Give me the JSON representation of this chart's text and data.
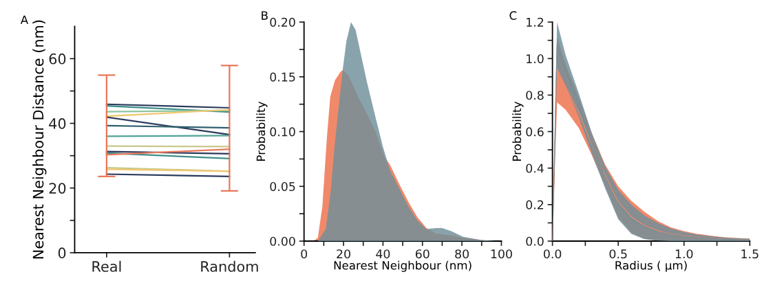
{
  "chart_data": [
    {
      "type": "line",
      "title": "A",
      "ylabel": "Nearest Neighbour Distance (nm)",
      "categories": [
        "Real",
        "Random"
      ],
      "ylim": [
        0,
        70
      ],
      "yticks": [
        0,
        {
          "value": 10,
          "label": null
        },
        20,
        {
          "value": 30,
          "label": null
        },
        40,
        {
          "value": 50,
          "label": null
        },
        60
      ],
      "grid": false,
      "legend": false,
      "marker": "none",
      "line_style": "solid",
      "series": [
        {
          "color": "#2b3a5c",
          "values": [
            45.9,
            44.8
          ]
        },
        {
          "color": "#3f8f8a",
          "values": [
            45.4,
            43.5
          ]
        },
        {
          "color": "#8cc5a0",
          "values": [
            43.6,
            44.0
          ]
        },
        {
          "color": "#f0c870",
          "values": [
            42.2,
            44.2
          ]
        },
        {
          "color": "#2b3a5c",
          "values": [
            41.9,
            36.5
          ]
        },
        {
          "color": "#2f5f6e",
          "values": [
            39.3,
            38.6
          ]
        },
        {
          "color": "#4fa395",
          "values": [
            36.0,
            36.2
          ]
        },
        {
          "color": "#c8c88a",
          "values": [
            33.0,
            32.8
          ]
        },
        {
          "color": "#2b3a5c",
          "values": [
            31.3,
            30.6
          ]
        },
        {
          "color": "#3f8f8a",
          "values": [
            30.8,
            29.1
          ]
        },
        {
          "color": "#c8c88a",
          "values": [
            26.3,
            25.2
          ]
        },
        {
          "color": "#f0c870",
          "values": [
            25.8,
            25.2
          ]
        },
        {
          "color": "#2b3a5c",
          "values": [
            24.3,
            23.6
          ]
        },
        {
          "color": "#e8785a",
          "values": [
            30.3,
            32.0
          ],
          "errors": [
            [
              23.6,
              54.9
            ],
            [
              19.1,
              57.9
            ]
          ]
        }
      ]
    },
    {
      "type": "area",
      "title": "B",
      "xlabel": "Nearest Neighbour (nm)",
      "ylabel": "Probability",
      "xlim": [
        0,
        100
      ],
      "xticks": [
        0,
        {
          "value": 10,
          "label": null
        },
        20,
        {
          "value": 30,
          "label": null
        },
        40,
        {
          "value": 50,
          "label": null
        },
        60,
        {
          "value": 70,
          "label": null
        },
        80,
        {
          "value": 90,
          "label": null
        },
        100
      ],
      "ylim": [
        0,
        0.2
      ],
      "yticks": [
        {
          "value": 0,
          "label": "0.00"
        },
        {
          "value": 0.025,
          "label": null
        },
        {
          "value": 0.05,
          "label": "0.05"
        },
        {
          "value": 0.075,
          "label": null
        },
        {
          "value": 0.1,
          "label": "0.10"
        },
        {
          "value": 0.125,
          "label": null
        },
        {
          "value": 0.15,
          "label": "0.15"
        },
        {
          "value": 0.175,
          "label": null
        },
        {
          "value": 0.2,
          "label": "0.20"
        }
      ],
      "grid": false,
      "legend": false,
      "series": [
        {
          "color": "#f0896a",
          "x": [
            4.6,
            7,
            9.3,
            11.6,
            13.3,
            15.7,
            18.6,
            19.7,
            22.6,
            27.3,
            31.9,
            36.5,
            41,
            43.5,
            48,
            52.8,
            57.4,
            62,
            66.7,
            71,
            76,
            80.6,
            90,
            99
          ],
          "values": [
            0,
            0.003,
            0.032,
            0.095,
            0.132,
            0.147,
            0.155,
            0.156,
            0.151,
            0.132,
            0.116,
            0.099,
            0.076,
            0.07,
            0.053,
            0.036,
            0.022,
            0.012,
            0.007,
            0.006,
            0.005,
            0.003,
            0.001,
            0
          ]
        },
        {
          "color": "#6f8f9a",
          "x": [
            7,
            11,
            13.3,
            15.7,
            18,
            19.7,
            21.5,
            23.8,
            26.1,
            28.4,
            31.9,
            36.5,
            40,
            43.5,
            48,
            52.8,
            57.4,
            62,
            66.7,
            70,
            74.8,
            80.6,
            90,
            97
          ],
          "values": [
            0,
            0.011,
            0.042,
            0.091,
            0.13,
            0.158,
            0.183,
            0.2,
            0.193,
            0.174,
            0.145,
            0.111,
            0.086,
            0.065,
            0.049,
            0.032,
            0.019,
            0.011,
            0.012,
            0.012,
            0.009,
            0.004,
            0.001,
            0
          ]
        }
      ]
    },
    {
      "type": "area",
      "title": "C",
      "xlabel": "Radius ( μm)",
      "ylabel": "Probability",
      "x": [
        0,
        0.035,
        0.1,
        0.2,
        0.3,
        0.4,
        0.5,
        0.6,
        0.7,
        0.8,
        0.9,
        1.0,
        1.1,
        1.2,
        1.3,
        1.4,
        1.5
      ],
      "xlim": [
        0,
        1.5
      ],
      "xticks": [
        {
          "value": 0,
          "label": "0.0"
        },
        {
          "value": 0.25,
          "label": null
        },
        {
          "value": 0.5,
          "label": "0.5"
        },
        {
          "value": 0.75,
          "label": null
        },
        {
          "value": 1.0,
          "label": "1.0"
        },
        {
          "value": 1.25,
          "label": null
        },
        {
          "value": 1.5,
          "label": "1.5"
        }
      ],
      "ylim": [
        0,
        1.2
      ],
      "yticks": [
        {
          "value": 0,
          "label": "0.0"
        },
        {
          "value": 0.1,
          "label": null
        },
        {
          "value": 0.2,
          "label": "0.2"
        },
        {
          "value": 0.3,
          "label": null
        },
        {
          "value": 0.4,
          "label": "0.4"
        },
        {
          "value": 0.5,
          "label": null
        },
        {
          "value": 0.6,
          "label": "0.6"
        },
        {
          "value": 0.7,
          "label": null
        },
        {
          "value": 0.8,
          "label": "0.8"
        },
        {
          "value": 0.9,
          "label": null
        },
        {
          "value": 1.0,
          "label": "1.0"
        },
        {
          "value": 1.1,
          "label": null
        },
        {
          "value": 1.2,
          "label": "1.2"
        }
      ],
      "grid": false,
      "legend": false,
      "series": [
        {
          "type": "line",
          "color": "#f0896a",
          "values": [
            0,
            0.94,
            0.845,
            0.705,
            0.53,
            0.36,
            0.215,
            0.133,
            0.086,
            0.057,
            0.038,
            0.028,
            0.02,
            0.015,
            0.011,
            0.009,
            0.007
          ],
          "lower": [
            0,
            0.76,
            0.72,
            0.62,
            0.47,
            0.3,
            0.13,
            0.045,
            0.012,
            0.003,
            0,
            0,
            0,
            0,
            0,
            0,
            0
          ],
          "upper": [
            0,
            1.12,
            0.97,
            0.79,
            0.59,
            0.42,
            0.3,
            0.22,
            0.16,
            0.11,
            0.075,
            0.055,
            0.04,
            0.03,
            0.022,
            0.017,
            0.013
          ]
        },
        {
          "type": "line",
          "color": "#6f8f9a",
          "values": [
            0,
            1.075,
            0.935,
            0.745,
            0.535,
            0.35,
            0.2,
            0.12,
            0.075,
            0.052,
            0.035,
            0.025,
            0.018,
            0.014,
            0.01,
            0.008,
            0.007
          ],
          "lower": [
            0,
            0.95,
            0.85,
            0.68,
            0.48,
            0.29,
            0.12,
            0.04,
            0.01,
            0.003,
            0,
            0,
            0,
            0,
            0,
            0,
            0
          ],
          "upper": [
            0,
            1.2,
            1.02,
            0.81,
            0.59,
            0.41,
            0.28,
            0.2,
            0.14,
            0.1,
            0.07,
            0.05,
            0.036,
            0.027,
            0.02,
            0.016,
            0.013
          ]
        }
      ]
    }
  ]
}
